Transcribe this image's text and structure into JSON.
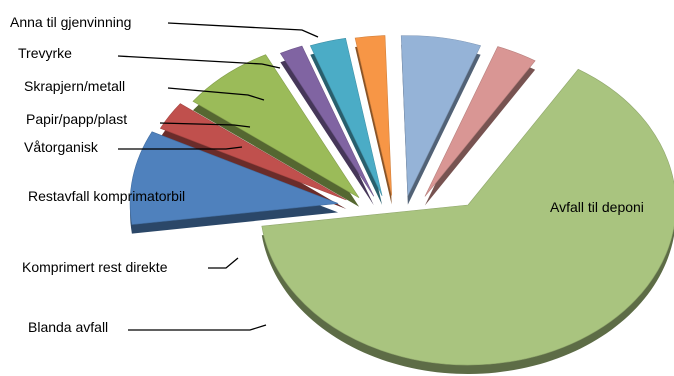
{
  "chart_data": {
    "type": "pie",
    "title": "",
    "slices": [
      {
        "label": "Avfall til deponi",
        "value": 64.0,
        "color": "#A9C47F"
      },
      {
        "label": "Blanda avfall",
        "value": 9.5,
        "color": "#4F81BD"
      },
      {
        "label": "Komprimert rest direkte",
        "value": 2.9,
        "color": "#C0504D"
      },
      {
        "label": "Restavfall komprimatorbil",
        "value": 7.3,
        "color": "#9BBB59"
      },
      {
        "label": "Våtorganisk",
        "value": 1.8,
        "color": "#8064A2"
      },
      {
        "label": "Papir/papp/plast",
        "value": 2.8,
        "color": "#4BACC6"
      },
      {
        "label": "Skrapjern/metall",
        "value": 2.3,
        "color": "#F79646"
      },
      {
        "label": "Trevyrke",
        "value": 6.2,
        "color": "#95B3D7"
      },
      {
        "label": "Anna til gjenvinning",
        "value": 3.2,
        "color": "#D99694"
      }
    ],
    "exploded": "Avfall til deponi",
    "label_placement": "outside-left"
  }
}
